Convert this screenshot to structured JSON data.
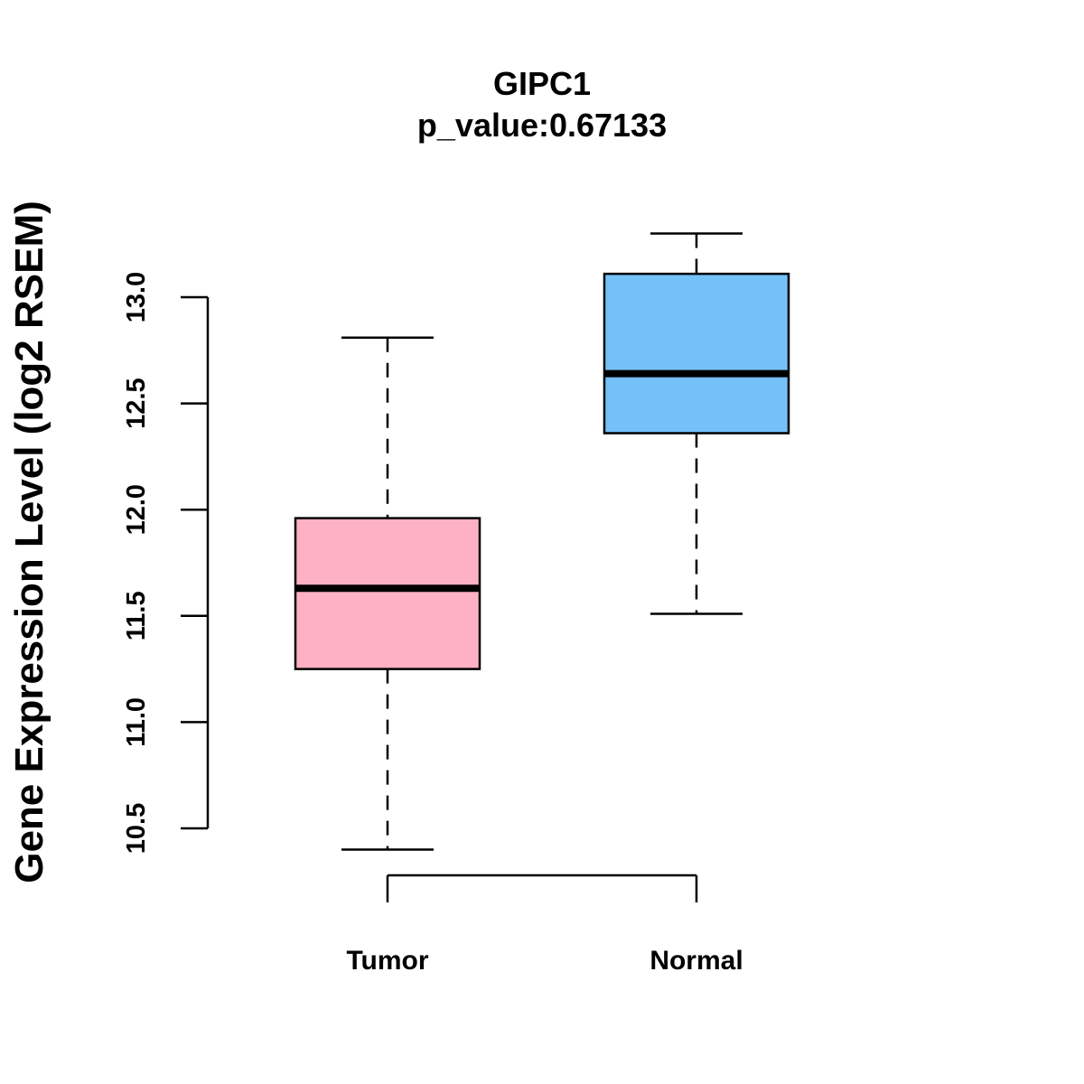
{
  "chart_data": {
    "type": "boxplot",
    "title": "GIPC1",
    "subtitle": "p_value:0.67133",
    "ylabel": "Gene Expression Level (log2 RSEM)",
    "xlabel": "",
    "ylim": [
      10.5,
      13.0
    ],
    "yticks": [
      {
        "value": 10.5,
        "label": "10.5"
      },
      {
        "value": 11.0,
        "label": "11.0"
      },
      {
        "value": 11.5,
        "label": "11.5"
      },
      {
        "value": 12.0,
        "label": "12.0"
      },
      {
        "value": 12.5,
        "label": "12.5"
      },
      {
        "value": 13.0,
        "label": "13.0"
      }
    ],
    "categories": [
      "Tumor",
      "Normal"
    ],
    "series": [
      {
        "name": "Tumor",
        "min": 10.4,
        "q1": 11.25,
        "median": 11.63,
        "q3": 11.96,
        "max": 12.81,
        "color": "#fdb1c3"
      },
      {
        "name": "Normal",
        "min": 11.51,
        "q1": 12.36,
        "median": 12.64,
        "q3": 13.11,
        "max": 13.3,
        "color": "#74c1f9"
      }
    ]
  }
}
